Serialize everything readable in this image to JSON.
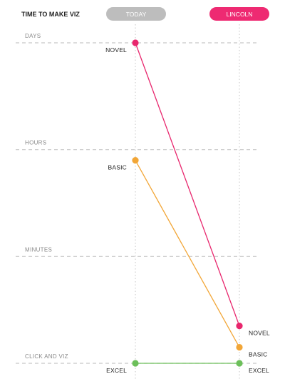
{
  "chart_data": {
    "type": "line",
    "title": "TIME TO MAKE VIZ",
    "categories": [
      "TODAY",
      "LINCOLN"
    ],
    "levels": [
      "DAYS",
      "HOURS",
      "MINUTES",
      "CLICK AND VIZ"
    ],
    "series": [
      {
        "name": "NOVEL",
        "values": [
          0.0,
          2.65
        ],
        "color": "#e8266d"
      },
      {
        "name": "BASIC",
        "values": [
          1.1,
          2.85
        ],
        "color": "#f2a637"
      },
      {
        "name": "EXCEL",
        "values": [
          3.0,
          3.0
        ],
        "color": "#6cbf5a"
      }
    ],
    "category_colors": [
      "#bdbdbd",
      "#ee2a72"
    ],
    "ylim": [
      0,
      3
    ],
    "grid": true
  }
}
